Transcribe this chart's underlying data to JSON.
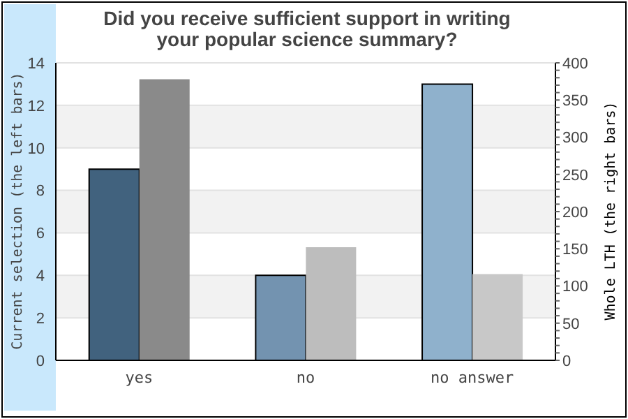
{
  "chart_data": {
    "type": "bar",
    "title": "Did you receive sufficient support in writing your popular science summary?",
    "ylabel": "Current selection (the left bars)",
    "y2label": "Whole LTH (the right bars)",
    "categories": [
      "yes",
      "no",
      "no answer"
    ],
    "series": [
      {
        "colors": [
          "#41627e",
          "#7393b0",
          "#8fb1cc"
        ],
        "values": [
          9,
          4,
          13
        ]
      },
      {
        "colors": [
          "#8a8a8a",
          "#bdbdbd",
          "#c8c8c8"
        ],
        "values": [
          378,
          152,
          116
        ],
        "axis": "y2"
      }
    ],
    "ylim": [
      0,
      14
    ],
    "yticks": [
      0,
      2,
      4,
      6,
      8,
      10,
      12,
      14
    ],
    "y2lim": [
      0,
      400
    ],
    "y2ticks": [
      0,
      {
        "value": 10,
        "label": null
      },
      {
        "value": 20,
        "label": null
      },
      {
        "value": 30,
        "label": null
      },
      {
        "value": 40,
        "label": null
      },
      50,
      {
        "value": 60,
        "label": null
      },
      {
        "value": 70,
        "label": null
      },
      {
        "value": 80,
        "label": null
      },
      {
        "value": 90,
        "label": null
      },
      100,
      {
        "value": 110,
        "label": null
      },
      {
        "value": 120,
        "label": null
      },
      {
        "value": 130,
        "label": null
      },
      {
        "value": 140,
        "label": null
      },
      150,
      {
        "value": 160,
        "label": null
      },
      {
        "value": 170,
        "label": null
      },
      {
        "value": 180,
        "label": null
      },
      {
        "value": 190,
        "label": null
      },
      200,
      {
        "value": 210,
        "label": null
      },
      {
        "value": 220,
        "label": null
      },
      {
        "value": 230,
        "label": null
      },
      {
        "value": 240,
        "label": null
      },
      250,
      {
        "value": 260,
        "label": null
      },
      {
        "value": 270,
        "label": null
      },
      {
        "value": 280,
        "label": null
      },
      {
        "value": 290,
        "label": null
      },
      300,
      {
        "value": 310,
        "label": null
      },
      {
        "value": 320,
        "label": null
      },
      {
        "value": 330,
        "label": null
      },
      {
        "value": 340,
        "label": null
      },
      350,
      {
        "value": 360,
        "label": null
      },
      {
        "value": 370,
        "label": null
      },
      {
        "value": 380,
        "label": null
      },
      {
        "value": 390,
        "label": null
      },
      400
    ],
    "grid": "y"
  }
}
